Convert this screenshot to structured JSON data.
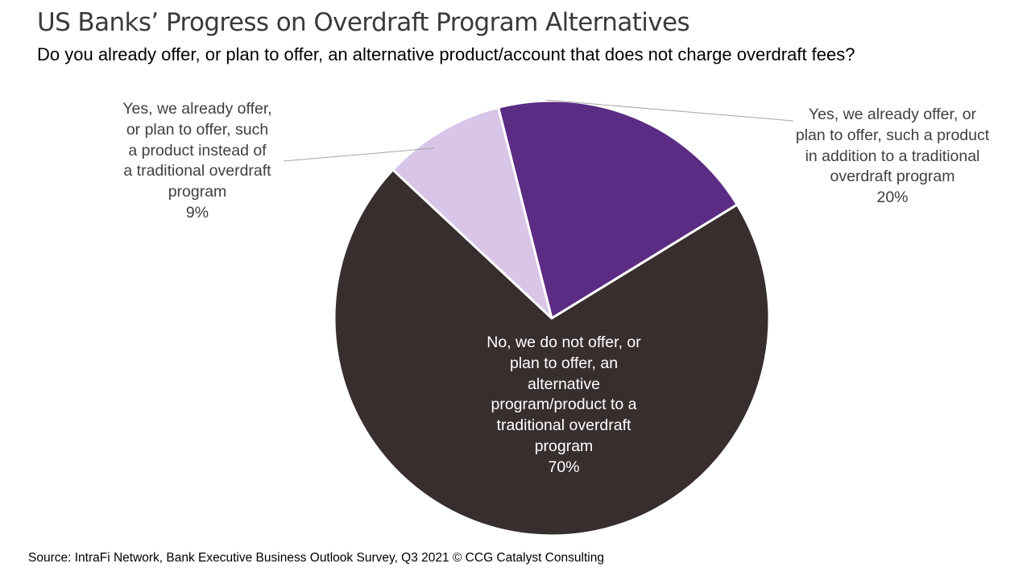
{
  "title": "US Banks’ Progress on Overdraft Program Alternatives",
  "subtitle": "Do you already offer, or plan to offer, an alternative product/account that does not charge overdraft fees?",
  "source": "Source: IntraFi Network, Bank Executive Business Outlook Survey, Q3 2021 © CCG Catalyst Consulting",
  "chart_data": {
    "type": "pie",
    "title": "",
    "legend": "none",
    "slices": [
      {
        "label": "No, we do not offer, or plan to offer, an alternative program/product to a traditional overdraft program",
        "value": 70,
        "value_label": "70%",
        "color": "#382e2e",
        "label_lines": [
          "No, we do not offer, or",
          "plan to offer, an",
          "alternative",
          "program/product to a",
          "traditional overdraft",
          "program"
        ]
      },
      {
        "label": "Yes, we already offer, or plan to offer, such a product instead of a traditional overdraft program",
        "value": 9,
        "value_label": "9%",
        "color": "#d9c5e7",
        "label_lines": [
          "Yes, we already offer,",
          "or plan to offer, such",
          "a product instead of",
          "a traditional overdraft",
          "program"
        ]
      },
      {
        "label": "Yes, we already offer, or plan to offer, such a product in addition to a traditional overdraft program",
        "value": 20,
        "value_label": "20%",
        "color": "#5b2c83",
        "label_lines": [
          "Yes, we already offer, or",
          "plan to offer, such a product",
          "in addition to a traditional",
          "overdraft program"
        ]
      }
    ]
  }
}
